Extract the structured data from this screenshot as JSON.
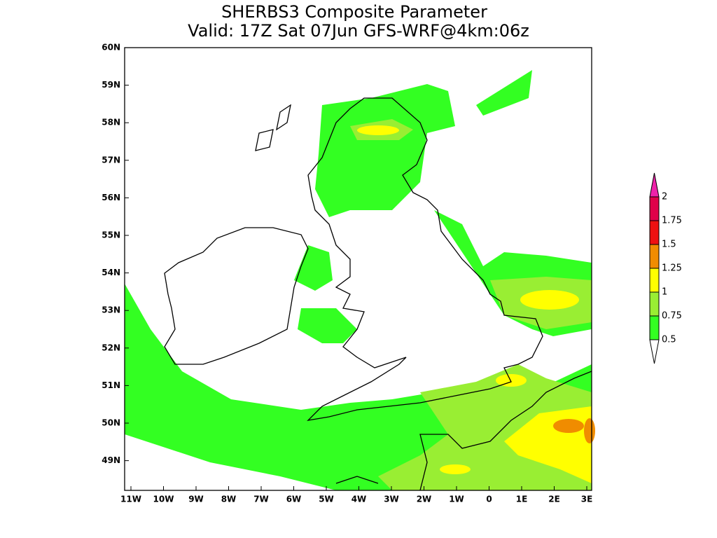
{
  "title": [
    "SHERBS3 Composite Parameter",
    "Valid: 17Z Sat 07Jun GFS-WRF@4km:06z"
  ],
  "lat_labels": [
    "60N",
    "59N",
    "58N",
    "57N",
    "56N",
    "55N",
    "54N",
    "53N",
    "52N",
    "51N",
    "50N",
    "49N"
  ],
  "lon_labels": [
    "11W",
    "10W",
    "9W",
    "8W",
    "7W",
    "6W",
    "5W",
    "4W",
    "3W",
    "2W",
    "1W",
    "0",
    "1E",
    "2E",
    "3E"
  ],
  "colorbar": {
    "levels": [
      0.5,
      0.75,
      1,
      1.25,
      1.5,
      1.75,
      2
    ],
    "colors": [
      "#33ff22",
      "#99ee33",
      "#ffff00",
      "#f08c00",
      "#ee1111",
      "#e0004a",
      "#ee22aa"
    ]
  }
}
